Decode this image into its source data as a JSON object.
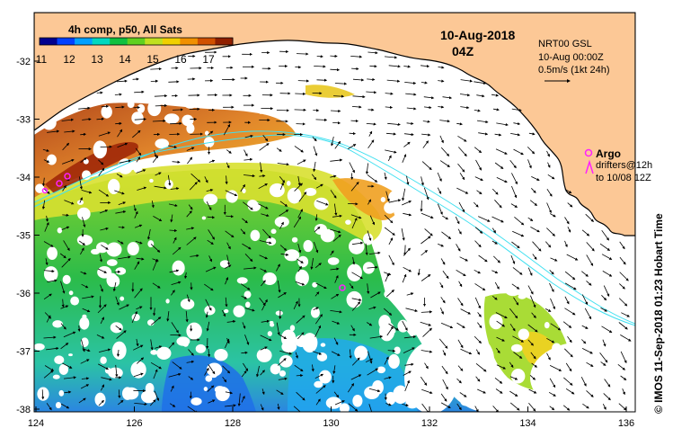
{
  "map": {
    "colorbar_title": "4h comp, p50, All Sats",
    "colorbar_ticks": [
      "11",
      "12",
      "13",
      "14",
      "15",
      "16",
      "17"
    ],
    "colorbar_colors": [
      "#00008f",
      "#0040ff",
      "#00a0ff",
      "#00d8c0",
      "#10c040",
      "#60d020",
      "#c0e020",
      "#f0d000",
      "#f09000",
      "#d05000",
      "#902000"
    ],
    "date_label": "10-Aug-2018",
    "time_label": "04Z",
    "info_lines": [
      "NRT00 GSL",
      "10-Aug 00:00Z",
      "0.5m/s (1kt 24h)"
    ],
    "argo_label": "Argo",
    "drifters_line1": "drifters@12h",
    "drifters_line2": "to 10/08 12Z",
    "credit": "© IMOS 11-Sep-2018 01:23 Hobart Time",
    "lon_ticks": [
      "124",
      "126",
      "128",
      "130",
      "132",
      "134",
      "136"
    ],
    "lat_ticks": [
      "-32",
      "-33",
      "-34",
      "-35",
      "-36",
      "-37",
      "-38"
    ],
    "colors": {
      "land": "#fcc896",
      "coast": "#000000",
      "contour": "#40e0f0",
      "argo": "#ff20ff"
    }
  }
}
